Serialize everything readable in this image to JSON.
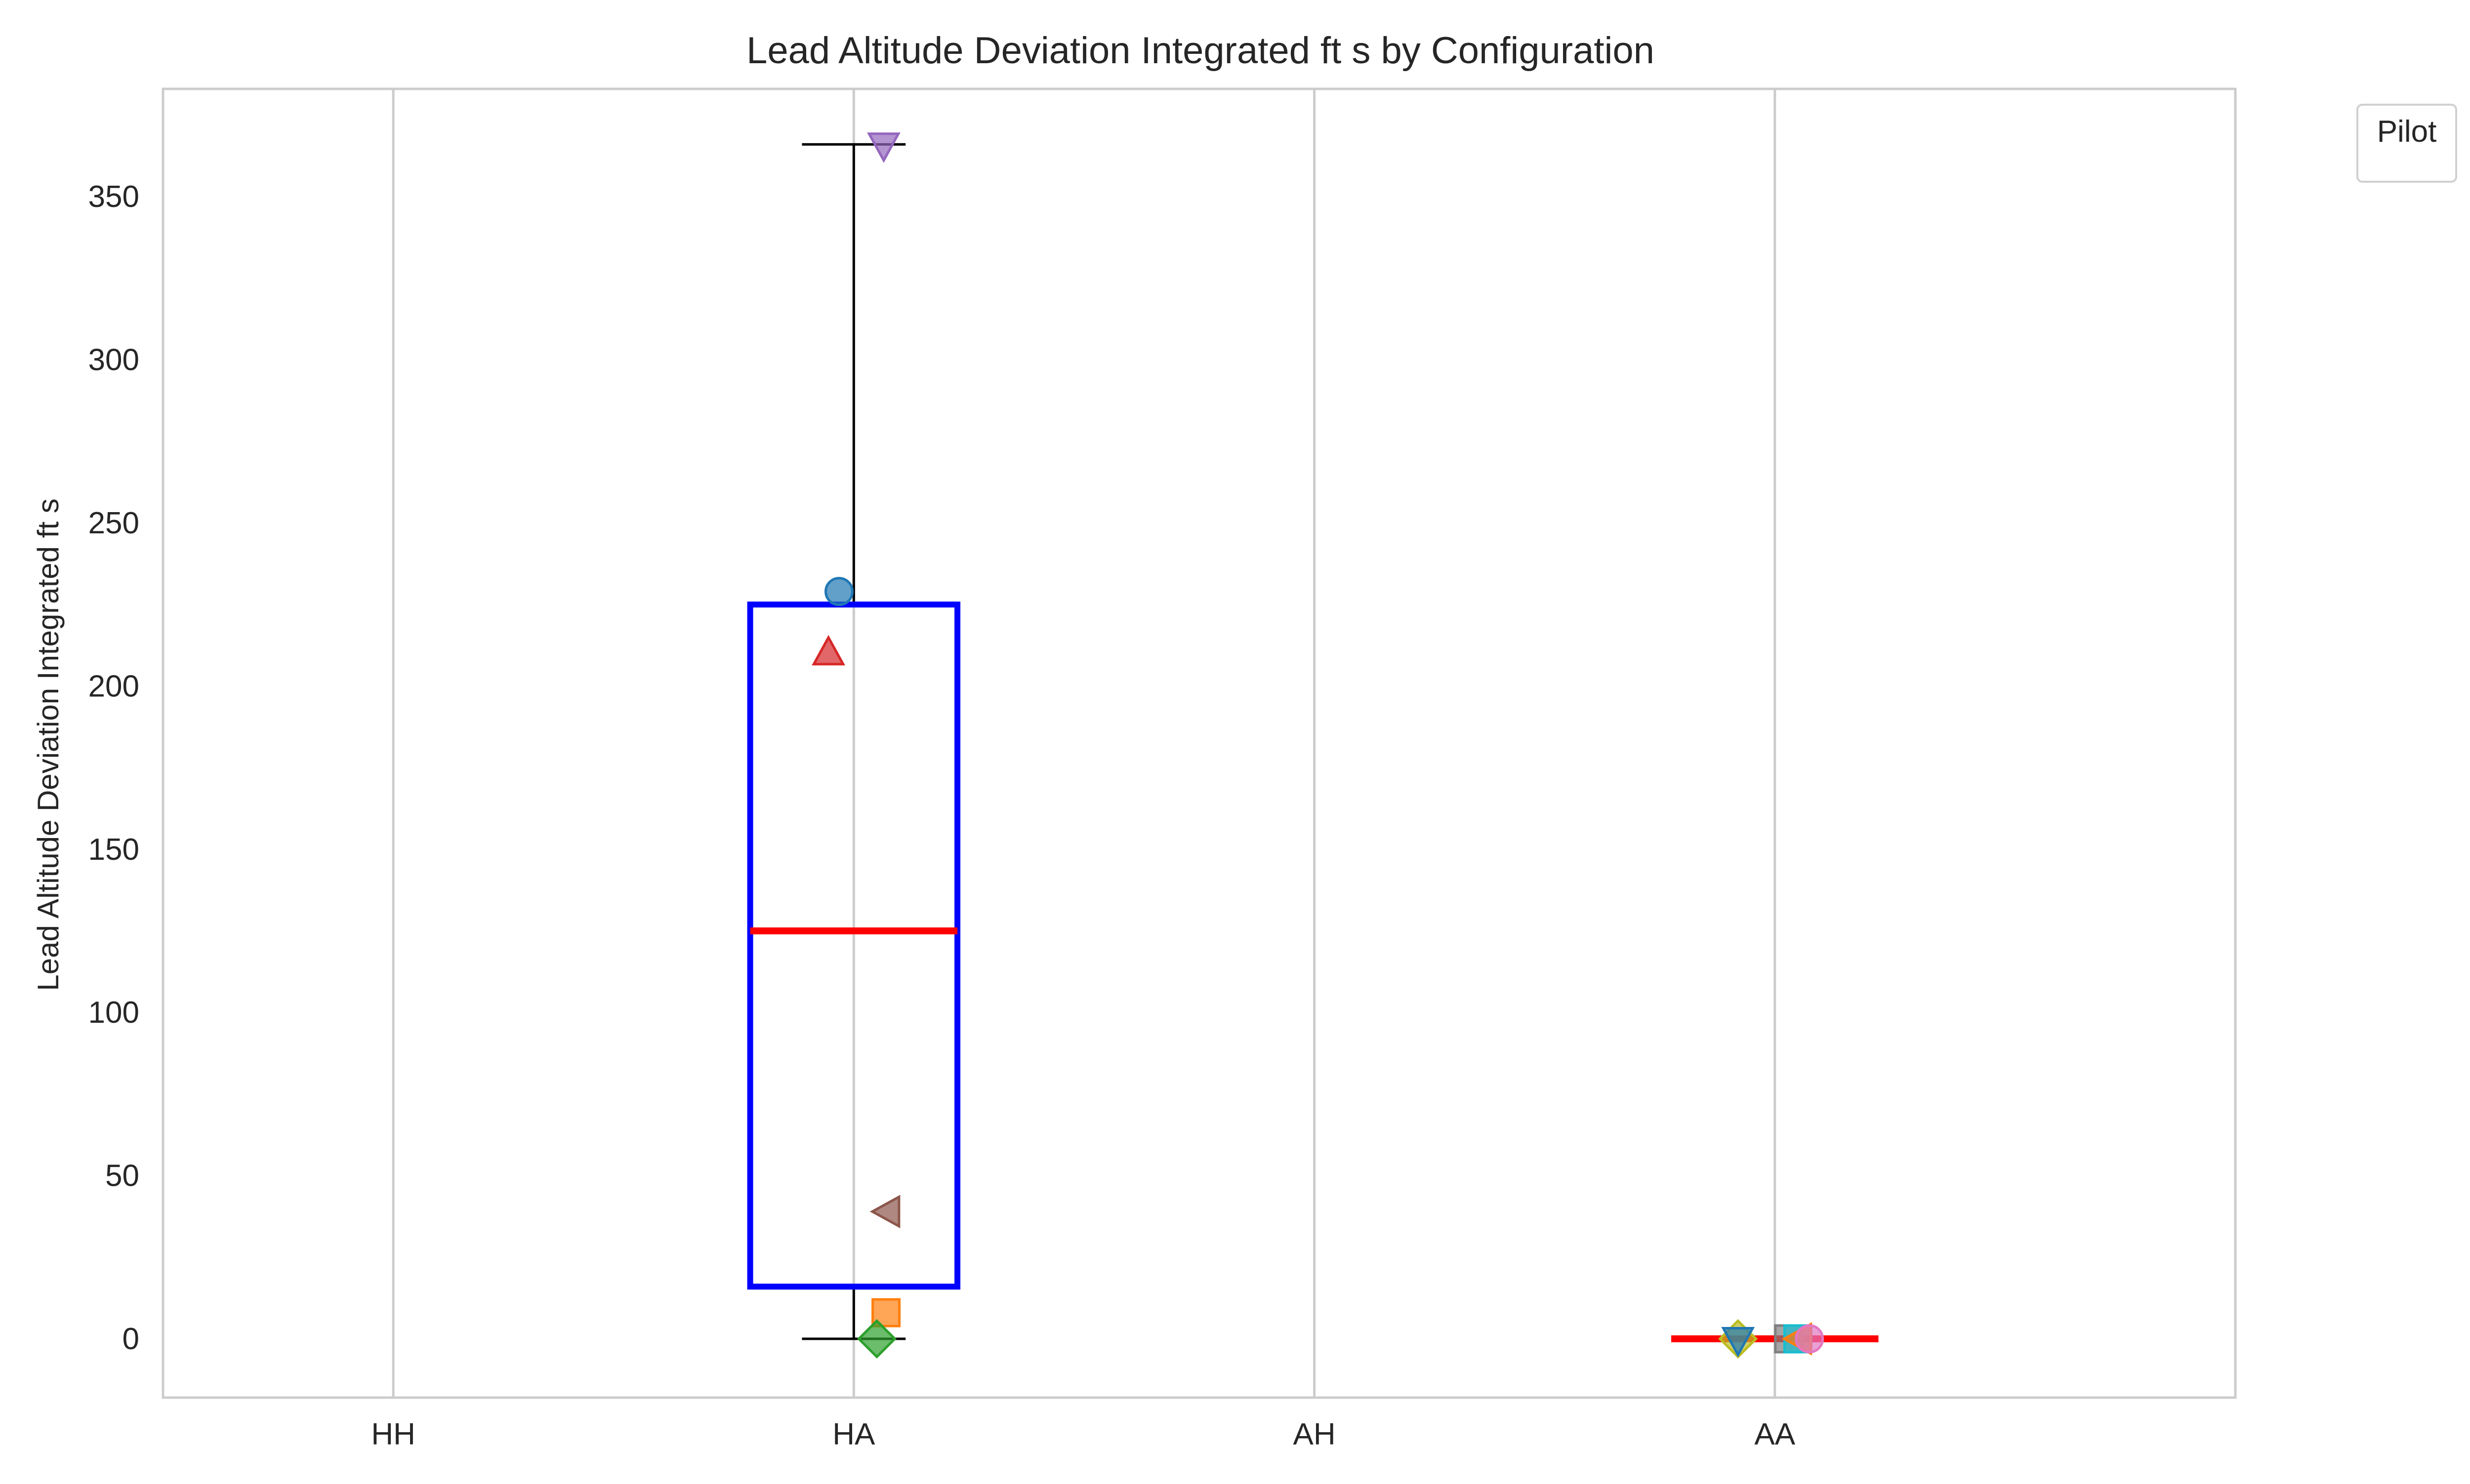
{
  "chart_data": {
    "type": "box",
    "title": "Lead Altitude Deviation Integrated ft s by Configuration",
    "xlabel": "",
    "ylabel": "Lead Altitude Deviation Integrated ft s",
    "categories": [
      "HH",
      "HA",
      "AH",
      "AA"
    ],
    "yticks": [
      0,
      50,
      100,
      150,
      200,
      250,
      300,
      350
    ],
    "ylim": [
      -18,
      383
    ],
    "grid": "vertical",
    "legend": {
      "title": "Pilot",
      "position": "top-right, outside plot",
      "entries": []
    },
    "colors": {
      "box": "#0000ff",
      "median": "#ff0000",
      "whisker": "#000000",
      "grid": "#cccccc",
      "frame": "#cccccc"
    },
    "boxes": [
      {
        "category": "AA",
        "median": 0,
        "q1": 0,
        "q3": 0,
        "whislo": 0,
        "whishi": 0
      },
      {
        "category": "HA",
        "median": 125,
        "q1": 16,
        "q3": 225,
        "whislo": 0,
        "whishi": 366
      }
    ],
    "points": [
      {
        "category": "HA",
        "value": 229,
        "marker": "circle",
        "color": "#1f77b4"
      },
      {
        "category": "HA",
        "value": 8,
        "marker": "square",
        "color": "#ff7f0e"
      },
      {
        "category": "HA",
        "value": 0,
        "marker": "diamond",
        "color": "#2ca02c"
      },
      {
        "category": "HA",
        "value": 210,
        "marker": "triangle-up",
        "color": "#d62728"
      },
      {
        "category": "HA",
        "value": 366,
        "marker": "triangle-down",
        "color": "#9467bd"
      },
      {
        "category": "HA",
        "value": 39,
        "marker": "triangle-left",
        "color": "#8c564b"
      },
      {
        "category": "AA",
        "value": 0,
        "marker": "diamond",
        "color": "#bcbd22"
      },
      {
        "category": "AA",
        "value": 0,
        "marker": "triangle-down",
        "color": "#1f77b4"
      },
      {
        "category": "AA",
        "value": 0,
        "marker": "square",
        "color": "#7f7f7f"
      },
      {
        "category": "AA",
        "value": 0,
        "marker": "square",
        "color": "#17becf"
      },
      {
        "category": "AA",
        "value": 0,
        "marker": "triangle-left",
        "color": "#ff7f0e"
      },
      {
        "category": "AA",
        "value": 0,
        "marker": "circle",
        "color": "#e377c2"
      }
    ]
  }
}
